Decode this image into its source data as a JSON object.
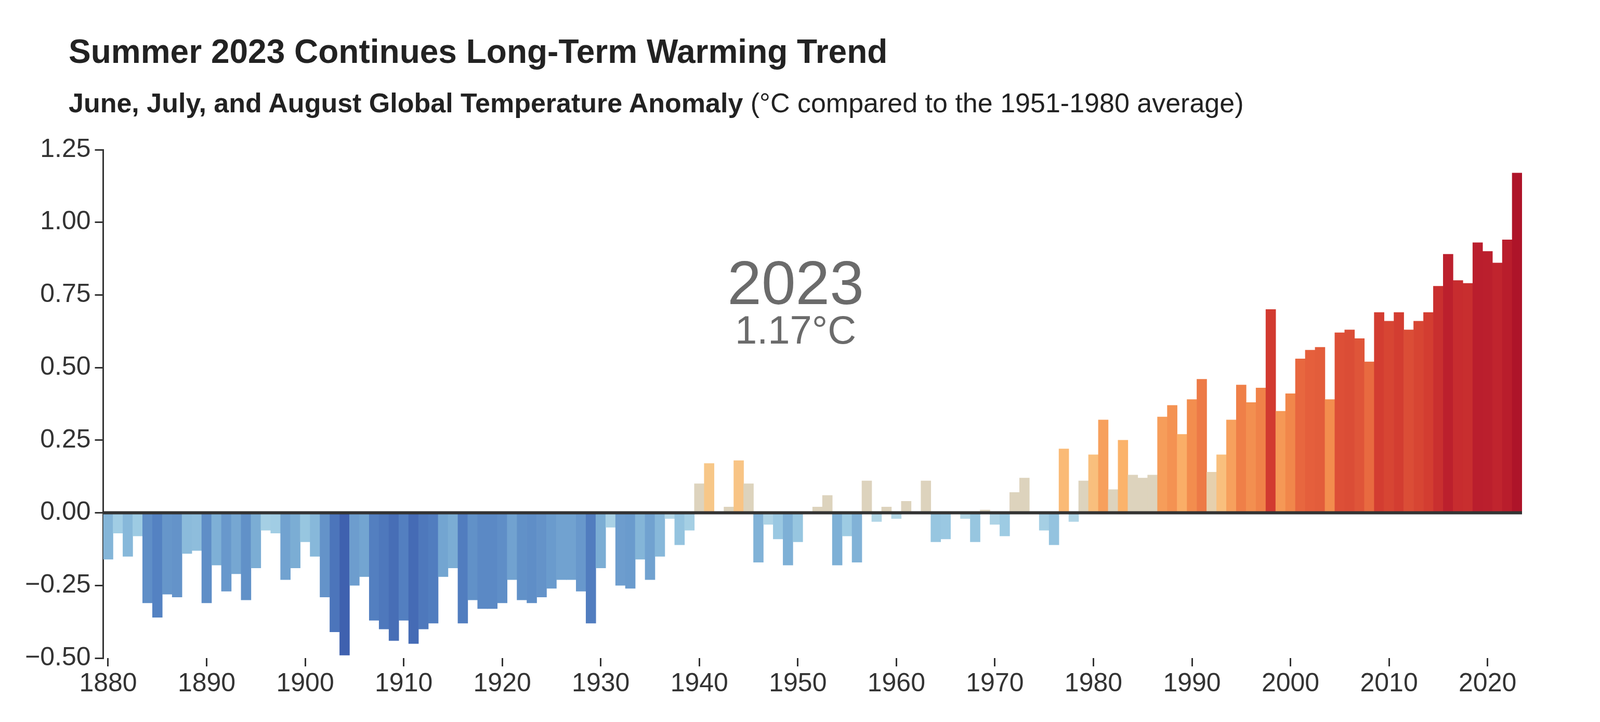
{
  "chart_data": {
    "type": "bar",
    "title": "Summer 2023 Continues Long-Term Warming Trend",
    "subtitle": [
      "June, July, and August Global Temperature Anomaly",
      "(°C compared to the 1951-1980 average)"
    ],
    "annotations": [
      "2023",
      "1.17°C"
    ],
    "categories": [
      "1880",
      null,
      null,
      null,
      null,
      null,
      null,
      null,
      null,
      null,
      "1890",
      null,
      null,
      null,
      null,
      null,
      null,
      null,
      null,
      null,
      "1900",
      null,
      null,
      null,
      null,
      null,
      null,
      null,
      null,
      null,
      "1910",
      null,
      null,
      null,
      null,
      null,
      null,
      null,
      null,
      null,
      "1920",
      null,
      null,
      null,
      null,
      null,
      null,
      null,
      null,
      null,
      "1930",
      null,
      null,
      null,
      null,
      null,
      null,
      null,
      null,
      null,
      "1940",
      null,
      null,
      null,
      null,
      null,
      null,
      null,
      null,
      null,
      "1950",
      null,
      null,
      null,
      null,
      null,
      null,
      null,
      null,
      null,
      "1960",
      null,
      null,
      null,
      null,
      null,
      null,
      null,
      null,
      null,
      "1970",
      null,
      null,
      null,
      null,
      null,
      null,
      null,
      null,
      null,
      "1980",
      null,
      null,
      null,
      null,
      null,
      null,
      null,
      null,
      null,
      "1990",
      null,
      null,
      null,
      null,
      null,
      null,
      null,
      null,
      null,
      "2000",
      null,
      null,
      null,
      null,
      null,
      null,
      null,
      null,
      null,
      "2010",
      null,
      null,
      null,
      null,
      null,
      null,
      null,
      null,
      null,
      "2020",
      null,
      null,
      null
    ],
    "values": [
      -0.16,
      -0.07,
      -0.15,
      -0.08,
      -0.31,
      -0.36,
      -0.28,
      -0.29,
      -0.14,
      -0.13,
      -0.31,
      -0.18,
      -0.27,
      -0.21,
      -0.3,
      -0.19,
      -0.06,
      -0.07,
      -0.23,
      -0.19,
      -0.1,
      -0.15,
      -0.29,
      -0.41,
      -0.49,
      -0.25,
      -0.22,
      -0.37,
      -0.4,
      -0.44,
      -0.37,
      -0.45,
      -0.4,
      -0.38,
      -0.22,
      -0.19,
      -0.38,
      -0.3,
      -0.33,
      -0.33,
      -0.31,
      -0.23,
      -0.3,
      -0.31,
      -0.29,
      -0.26,
      -0.23,
      -0.23,
      -0.27,
      -0.38,
      -0.19,
      -0.05,
      -0.25,
      -0.26,
      -0.16,
      -0.23,
      -0.15,
      -0.02,
      -0.11,
      -0.06,
      0.1,
      0.17,
      0.0,
      0.02,
      0.18,
      0.1,
      -0.17,
      -0.04,
      -0.09,
      -0.18,
      -0.1,
      0.0,
      0.02,
      0.06,
      -0.18,
      -0.08,
      -0.17,
      0.11,
      -0.03,
      0.02,
      -0.02,
      0.04,
      0.0,
      0.11,
      -0.1,
      -0.09,
      0.0,
      -0.02,
      -0.1,
      0.01,
      -0.04,
      -0.08,
      0.07,
      0.12,
      0.0,
      -0.06,
      -0.11,
      0.22,
      -0.03,
      0.11,
      0.2,
      0.32,
      0.08,
      0.25,
      0.13,
      0.12,
      0.13,
      0.33,
      0.37,
      0.27,
      0.39,
      0.46,
      0.14,
      0.2,
      0.32,
      0.44,
      0.38,
      0.43,
      0.7,
      0.35,
      0.41,
      0.53,
      0.56,
      0.57,
      0.39,
      0.62,
      0.63,
      0.6,
      0.52,
      0.69,
      0.66,
      0.69,
      0.63,
      0.66,
      0.69,
      0.78,
      0.89,
      0.8,
      0.79,
      0.93,
      0.9,
      0.86,
      0.94,
      1.17
    ],
    "ylim": [
      -0.5,
      1.25
    ],
    "yticks": [
      {
        "value": -0.5,
        "label": "−0.50"
      },
      {
        "value": -0.25,
        "label": "−0.25"
      },
      {
        "value": 0,
        "label": "0.00"
      },
      {
        "value": 0.25,
        "label": "0.25"
      },
      {
        "value": 0.5,
        "label": "0.50"
      },
      {
        "value": 0.75,
        "label": "0.75"
      },
      {
        "value": 1,
        "label": "1.00"
      },
      {
        "value": 1.25,
        "label": "1.25"
      }
    ],
    "grid": false
  }
}
